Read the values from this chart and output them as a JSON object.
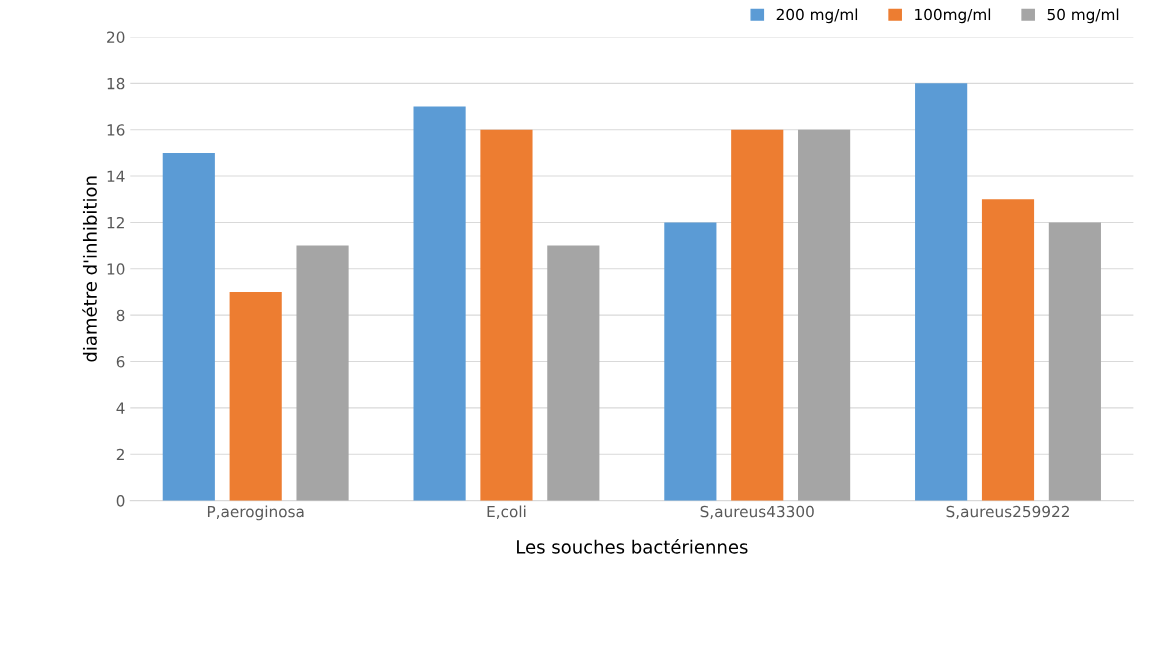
{
  "chart_data": {
    "type": "bar",
    "xlabel": "Les souches bactériennes",
    "ylabel": "diamétre d'inhibition",
    "categories": [
      "P,aeroginosa",
      "E,coli",
      "S,aureus43300",
      "S,aureus259922"
    ],
    "series": [
      {
        "name": "200 mg/ml",
        "color": "#5b9bd5",
        "values": [
          15,
          17,
          12,
          18
        ]
      },
      {
        "name": "100mg/ml",
        "color": "#ed7d31",
        "values": [
          9,
          16,
          16,
          13
        ]
      },
      {
        "name": "50 mg/ml",
        "color": "#a5a5a5",
        "values": [
          11,
          11,
          16,
          12
        ]
      }
    ],
    "ylim": [
      0,
      20
    ],
    "yticks": [
      0,
      2,
      4,
      6,
      8,
      10,
      12,
      14,
      16,
      18,
      20
    ],
    "grid": "y",
    "legend": "top right"
  }
}
